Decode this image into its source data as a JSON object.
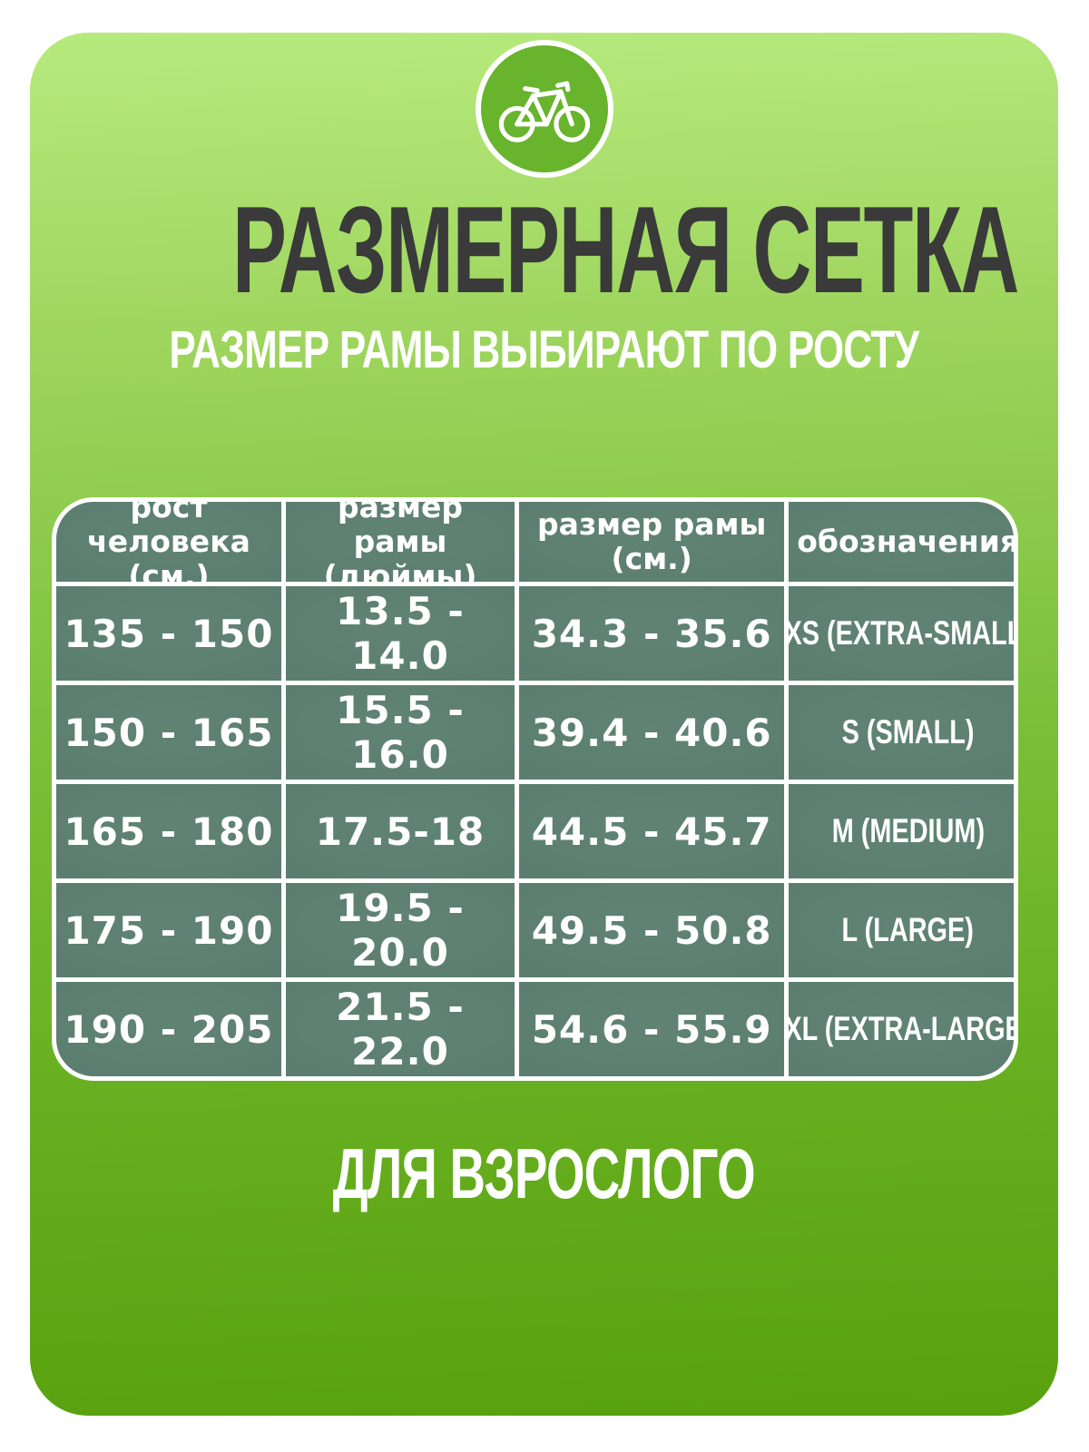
{
  "title": "РАЗМЕРНАЯ СЕТКА",
  "subtitle": "РАЗМЕР РАМЫ ВЫБИРАЮТ ПО РОСТУ",
  "footer": "ДЛЯ ВЗРОСЛОГО",
  "badge": {
    "icon": "bicycle-icon"
  },
  "colors": {
    "background_top": "#b7ea7d",
    "background_bottom": "#58a10e",
    "badge_fill": "#68b42d",
    "cell_fill": "#5b7d70",
    "grid_lines": "#ffffff",
    "title_text": "#3a3a3a",
    "light_text": "#ffffff"
  },
  "chart_data": {
    "type": "table",
    "title": "РАЗМЕРНАЯ СЕТКА",
    "subtitle": "РАЗМЕР РАМЫ ВЫБИРАЮТ ПО РОСТУ",
    "footnote": "ДЛЯ ВЗРОСЛОГО",
    "columns": [
      "рост человека (см.)",
      "размер рамы (дюймы)",
      "размер рамы (см.)",
      "обозначения"
    ],
    "header_cells": [
      {
        "top": "рост человека",
        "bottom": "(см.)"
      },
      {
        "top": "размер рамы",
        "bottom": "(дюймы)"
      },
      {
        "top": "размер рамы",
        "bottom": "(см.)"
      },
      {
        "top": "обозначения",
        "bottom": ""
      }
    ],
    "rows": [
      [
        "135 - 150",
        "13.5 - 14.0",
        "34.3 - 35.6",
        "XS (EXTRA-SMALL)"
      ],
      [
        "150 - 165",
        "15.5 - 16.0",
        "39.4 - 40.6",
        "S (SMALL)"
      ],
      [
        "165 - 180",
        "17.5-18",
        "44.5 - 45.7",
        "M (MEDIUM)"
      ],
      [
        "175 - 190",
        "19.5 - 20.0",
        "49.5 - 50.8",
        "L (LARGE)"
      ],
      [
        "190 - 205",
        "21.5 - 22.0",
        "54.6 - 55.9",
        "XL (EXTRA-LARGE)"
      ]
    ]
  }
}
